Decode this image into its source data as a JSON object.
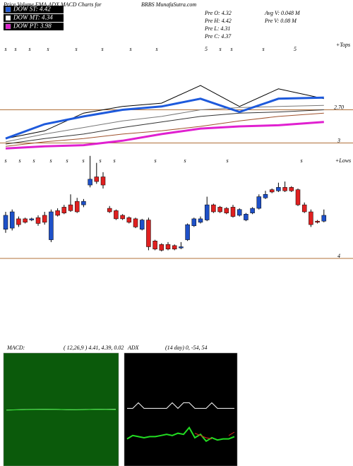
{
  "header": {
    "title": "Price,Volume,EMA,ADX,MACD Charts for",
    "site": "BRBS MunafaSutra.com",
    "pre": [
      "Pre  O: 4.32",
      "Pre  H: 4.42",
      "Pre  L: 4.31",
      "Pre  C: 4.37"
    ],
    "volume": [
      "Avg V: 0.048 M",
      "Pre  V: 0.08 M"
    ]
  },
  "legend": [
    {
      "label": "DOW ST: 4.42",
      "color": "#1e5adc"
    },
    {
      "label": "DOW MT: 4.34",
      "color": "#ffffff"
    },
    {
      "label": "DOW PT: 3.98",
      "color": "#e020d0"
    }
  ],
  "chart_data": [
    {
      "type": "line",
      "ylim": [
        3.08,
        2.09
      ],
      "yticks": [
        {
          "value": 2.7,
          "label": "2.70"
        },
        3
      ],
      "grid": true,
      "grid_color": "#b0703a",
      "markers": [
        "s",
        "s",
        "s",
        "s",
        "s",
        "s",
        "s",
        "s",
        "5",
        "s",
        "s",
        "s",
        "5"
      ],
      "marker_note": "+Tops",
      "x": [
        0,
        6,
        12,
        18,
        24,
        30,
        36,
        42,
        49
      ],
      "series": [
        {
          "color": "#000000",
          "width": 1,
          "values": [
            2.96,
            2.89,
            2.73,
            2.67,
            2.64,
            2.48,
            2.67,
            2.51,
            2.6
          ]
        },
        {
          "color": "#777777",
          "width": 1,
          "values": [
            2.99,
            2.92,
            2.86,
            2.8,
            2.76,
            2.7,
            2.68,
            2.67,
            2.66
          ]
        },
        {
          "color": "#333333",
          "width": 1,
          "values": [
            3.01,
            2.96,
            2.92,
            2.86,
            2.81,
            2.76,
            2.73,
            2.72,
            2.7
          ]
        },
        {
          "color": "#a0522d",
          "width": 1,
          "values": [
            3.03,
            2.99,
            2.96,
            2.92,
            2.89,
            2.85,
            2.8,
            2.76,
            2.73
          ]
        },
        {
          "color": "#1e5adc",
          "width": 3,
          "values": [
            2.96,
            2.83,
            2.76,
            2.7,
            2.67,
            2.6,
            2.72,
            2.6,
            2.59
          ]
        },
        {
          "color": "#e020d0",
          "width": 3,
          "values": [
            3.05,
            3.03,
            3.02,
            2.98,
            2.92,
            2.87,
            2.85,
            2.84,
            2.81
          ]
        }
      ]
    },
    {
      "type": "candlestick",
      "ylim": [
        4,
        4.9
      ],
      "yticks": [
        4
      ],
      "grid": true,
      "grid_color": "#b0703a",
      "up_color": "#1e50c8",
      "down_color": "#e02020",
      "markers": [
        "s",
        "s",
        "s",
        "s",
        "s",
        "s",
        "s",
        "s",
        "s",
        "s",
        "s",
        "s"
      ],
      "marker_note": "+Lows",
      "open": [
        4.25,
        4.26,
        4.34,
        4.34,
        4.33,
        4.35,
        4.37,
        4.16,
        4.41,
        4.44,
        4.46,
        4.49,
        4.46,
        4.63,
        4.7,
        4.7,
        4.43,
        4.41,
        4.37,
        4.35,
        4.34,
        4.25,
        4.33,
        4.15,
        4.12,
        4.12,
        4.11,
        4.09,
        4.16,
        4.28,
        4.31,
        4.33,
        4.46,
        4.44,
        4.43,
        4.44,
        4.37,
        4.33,
        4.39,
        4.43,
        4.52,
        4.59,
        4.58,
        4.61,
        4.61,
        4.59,
        4.46,
        4.4,
        4.32,
        4.32
      ],
      "high": [
        4.4,
        4.42,
        4.36,
        4.35,
        4.35,
        4.37,
        4.4,
        4.42,
        4.43,
        4.46,
        4.55,
        4.52,
        4.51,
        4.88,
        4.82,
        4.74,
        4.45,
        4.42,
        4.38,
        4.36,
        4.35,
        4.34,
        4.35,
        4.16,
        4.13,
        4.14,
        4.12,
        4.14,
        4.3,
        4.35,
        4.36,
        4.53,
        4.47,
        4.45,
        4.44,
        4.46,
        4.43,
        4.39,
        4.44,
        4.55,
        4.58,
        4.6,
        4.65,
        4.66,
        4.62,
        4.6,
        4.48,
        4.42,
        4.33,
        4.42
      ],
      "low": [
        4.22,
        4.24,
        4.27,
        4.3,
        4.32,
        4.28,
        4.29,
        4.14,
        4.36,
        4.38,
        4.4,
        4.39,
        4.44,
        4.61,
        4.64,
        4.6,
        4.39,
        4.33,
        4.33,
        4.3,
        4.26,
        4.24,
        4.07,
        4.07,
        4.06,
        4.07,
        4.07,
        4.08,
        4.15,
        4.27,
        4.3,
        4.32,
        4.39,
        4.39,
        4.38,
        4.35,
        4.36,
        4.32,
        4.38,
        4.42,
        4.51,
        4.56,
        4.57,
        4.57,
        4.57,
        4.45,
        4.39,
        4.27,
        4.3,
        4.31
      ],
      "close": [
        4.37,
        4.4,
        4.29,
        4.31,
        4.34,
        4.3,
        4.31,
        4.4,
        4.37,
        4.39,
        4.41,
        4.4,
        4.49,
        4.68,
        4.66,
        4.63,
        4.4,
        4.34,
        4.34,
        4.31,
        4.27,
        4.33,
        4.1,
        4.08,
        4.07,
        4.08,
        4.08,
        4.1,
        4.29,
        4.34,
        4.34,
        4.46,
        4.4,
        4.4,
        4.39,
        4.36,
        4.42,
        4.38,
        4.43,
        4.53,
        4.55,
        4.57,
        4.61,
        4.58,
        4.58,
        4.46,
        4.4,
        4.29,
        4.31,
        4.37
      ]
    },
    {
      "type": "line",
      "title": "MACD:",
      "subtitle": "( 12,26,9 ) 4.41, 4.39, 0.02",
      "ylim": [
        0,
        8.8
      ],
      "background": "#0b5a0b",
      "series": [
        {
          "color": "#ffffff",
          "width": 1,
          "values": [
            4.36,
            4.38,
            4.4,
            4.41,
            4.42,
            4.41,
            4.39,
            4.38,
            4.4,
            4.42,
            4.41,
            4.41
          ]
        },
        {
          "color": "#22dd22",
          "width": 1,
          "values": [
            4.35,
            4.37,
            4.39,
            4.4,
            4.41,
            4.41,
            4.4,
            4.39,
            4.39,
            4.41,
            4.4,
            4.39
          ]
        }
      ]
    },
    {
      "type": "line",
      "title": "ADX",
      "subtitle": "(14 day) 0, -54, 54",
      "ylim": [
        0,
        100
      ],
      "background": "#000000",
      "series": [
        {
          "color": "#ffffff",
          "width": 1,
          "values": [
            51,
            51,
            56,
            51,
            51,
            51,
            51,
            51,
            56,
            51,
            56,
            56,
            51,
            51,
            51,
            56,
            51,
            51,
            51,
            51
          ]
        },
        {
          "color": "#22dd22",
          "width": 2,
          "values": [
            24,
            27,
            26,
            25,
            26,
            26,
            27,
            28,
            27,
            29,
            28,
            34,
            25,
            28,
            22,
            25,
            23,
            24,
            24,
            26
          ]
        },
        {
          "color": "#e02020",
          "width": 1,
          "values": [
            null,
            null,
            null,
            null,
            null,
            null,
            null,
            null,
            null,
            null,
            null,
            null,
            29,
            27,
            25,
            24,
            null,
            null,
            27,
            30
          ]
        }
      ]
    }
  ]
}
